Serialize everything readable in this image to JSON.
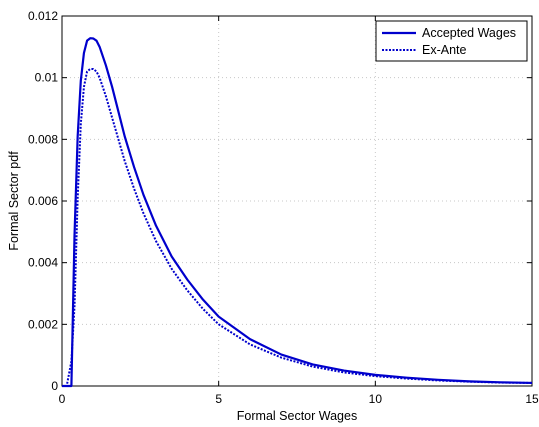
{
  "chart_data": {
    "type": "line",
    "title": "",
    "xlabel": "Formal Sector Wages",
    "ylabel": "Formal Sector pdf",
    "xlim": [
      0,
      15
    ],
    "ylim": [
      0,
      0.012
    ],
    "xticks": [
      0,
      5,
      10,
      15
    ],
    "yticks": [
      0,
      0.002,
      0.004,
      0.006,
      0.008,
      0.01,
      0.012
    ],
    "xtick_labels": [
      "0",
      "5",
      "10",
      "15"
    ],
    "ytick_labels": [
      "0",
      "0.002",
      "0.004",
      "0.006",
      "0.008",
      "0.01",
      "0.012"
    ],
    "grid": true,
    "legend_position": "top-right",
    "series": [
      {
        "name": "Accepted Wages",
        "color": "#0000cc",
        "style": "solid",
        "x": [
          0.0,
          0.15,
          0.3,
          0.4,
          0.5,
          0.6,
          0.7,
          0.8,
          0.9,
          1.0,
          1.1,
          1.2,
          1.4,
          1.6,
          1.8,
          2.0,
          2.3,
          2.6,
          3.0,
          3.5,
          4.0,
          4.5,
          5.0,
          6.0,
          7.0,
          8.0,
          9.0,
          10.0,
          11.0,
          12.0,
          13.0,
          14.0,
          15.0
        ],
        "y": [
          0.0,
          0.0,
          0.0,
          0.0049,
          0.0081,
          0.0099,
          0.0108,
          0.0112,
          0.01128,
          0.01127,
          0.0112,
          0.011,
          0.0104,
          0.0097,
          0.0089,
          0.0081,
          0.0071,
          0.0062,
          0.0052,
          0.0042,
          0.00345,
          0.0028,
          0.00225,
          0.00152,
          0.00102,
          0.0007,
          0.0005,
          0.00036,
          0.00027,
          0.0002,
          0.00015,
          0.00012,
          0.0001
        ]
      },
      {
        "name": "Ex-Ante",
        "color": "#0000cc",
        "style": "dotted",
        "x": [
          0.0,
          0.15,
          0.3,
          0.4,
          0.5,
          0.6,
          0.7,
          0.8,
          0.9,
          1.0,
          1.1,
          1.2,
          1.4,
          1.6,
          1.8,
          2.0,
          2.3,
          2.6,
          3.0,
          3.5,
          4.0,
          4.5,
          5.0,
          6.0,
          7.0,
          8.0,
          9.0,
          10.0,
          11.0,
          12.0,
          13.0,
          14.0,
          15.0
        ],
        "y": [
          0.0,
          0.0,
          0.0008,
          0.0026,
          0.0061,
          0.0085,
          0.0097,
          0.0102,
          0.01028,
          0.01028,
          0.0102,
          0.01,
          0.0094,
          0.0087,
          0.008,
          0.0073,
          0.0064,
          0.0056,
          0.0047,
          0.0038,
          0.0031,
          0.0025,
          0.002,
          0.00135,
          0.00092,
          0.00063,
          0.00044,
          0.00032,
          0.00024,
          0.00018,
          0.00014,
          0.00011,
          0.0001
        ]
      }
    ]
  }
}
